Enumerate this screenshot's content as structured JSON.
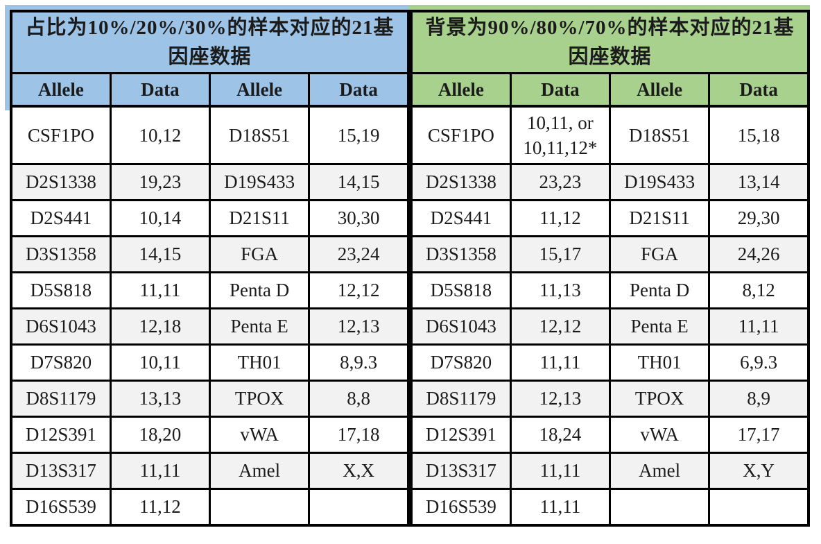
{
  "colors": {
    "left_header_fill": "#9DC3E6",
    "right_header_fill": "#A9D18E",
    "alt_row_fill": "#F2F2F2",
    "border": "#000000",
    "text": "#1B1B1B"
  },
  "left_table": {
    "title": "占比为10%/20%/30%的样本对应的21基因座数据",
    "columns": [
      "Allele",
      "Data",
      "Allele",
      "Data"
    ],
    "rows": [
      [
        "CSF1PO",
        "10,12",
        "D18S51",
        "15,19"
      ],
      [
        "D2S1338",
        "19,23",
        "D19S433",
        "14,15"
      ],
      [
        "D2S441",
        "10,14",
        "D21S11",
        "30,30"
      ],
      [
        "D3S1358",
        "14,15",
        "FGA",
        "23,24"
      ],
      [
        "D5S818",
        "11,11",
        "Penta D",
        "12,12"
      ],
      [
        "D6S1043",
        "12,18",
        "Penta E",
        "12,13"
      ],
      [
        "D7S820",
        "10,11",
        "TH01",
        "8,9.3"
      ],
      [
        "D8S1179",
        "13,13",
        "TPOX",
        "8,8"
      ],
      [
        "D12S391",
        "18,20",
        "vWA",
        "17,18"
      ],
      [
        "D13S317",
        "11,11",
        "Amel",
        "X,X"
      ],
      [
        "D16S539",
        "11,12",
        "",
        ""
      ]
    ]
  },
  "right_table": {
    "title": "背景为90%/80%/70%的样本对应的21基因座数据",
    "columns": [
      "Allele",
      "Data",
      "Allele",
      "Data"
    ],
    "rows": [
      [
        "CSF1PO",
        "10,11, or\n10,11,12*",
        "D18S51",
        "15,18"
      ],
      [
        "D2S1338",
        "23,23",
        "D19S433",
        "13,14"
      ],
      [
        "D2S441",
        "11,12",
        "D21S11",
        "29,30"
      ],
      [
        "D3S1358",
        "15,17",
        "FGA",
        "24,26"
      ],
      [
        "D5S818",
        "11,13",
        "Penta D",
        "8,12"
      ],
      [
        "D6S1043",
        "12,12",
        "Penta E",
        "11,11"
      ],
      [
        "D7S820",
        "11,11",
        "TH01",
        "6,9.3"
      ],
      [
        "D8S1179",
        "12,13",
        "TPOX",
        "8,9"
      ],
      [
        "D12S391",
        "18,24",
        "vWA",
        "17,17"
      ],
      [
        "D13S317",
        "11,11",
        "Amel",
        "X,Y"
      ],
      [
        "D16S539",
        "11,11",
        "",
        ""
      ]
    ]
  }
}
